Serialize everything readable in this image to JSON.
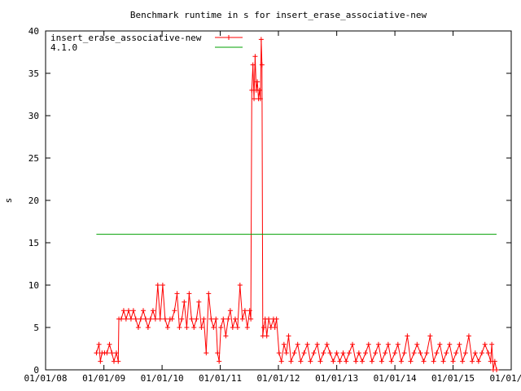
{
  "chart_data": {
    "type": "line",
    "title": "Benchmark runtime in s for insert_erase_associative-new",
    "xlabel": "",
    "ylabel": "s",
    "x_type": "date",
    "xlim": [
      "2008-01-01",
      "2016-01-01"
    ],
    "ylim": [
      0,
      40
    ],
    "x_ticks": [
      "01/01/08",
      "01/01/09",
      "01/01/10",
      "01/01/11",
      "01/01/12",
      "01/01/13",
      "01/01/14",
      "01/01/15",
      "01/01/16"
    ],
    "x_tick_dates": [
      "2008-01-01",
      "2009-01-01",
      "2010-01-01",
      "2011-01-01",
      "2012-01-01",
      "2013-01-01",
      "2014-01-01",
      "2015-01-01",
      "2016-01-01"
    ],
    "y_ticks": [
      0,
      5,
      10,
      15,
      20,
      25,
      30,
      35,
      40
    ],
    "grid": false,
    "legend_position": "top-left",
    "series": [
      {
        "name": "insert_erase_associative-new",
        "color": "#ff0000",
        "marker": "plus",
        "points": [
          [
            "2008-11-15",
            2
          ],
          [
            "2008-12-01",
            3
          ],
          [
            "2008-12-10",
            1
          ],
          [
            "2008-12-20",
            2
          ],
          [
            "2009-01-05",
            2
          ],
          [
            "2009-01-20",
            2
          ],
          [
            "2009-02-05",
            3
          ],
          [
            "2009-02-20",
            2
          ],
          [
            "2009-03-05",
            1
          ],
          [
            "2009-03-20",
            2
          ],
          [
            "2009-04-01",
            1
          ],
          [
            "2009-04-05",
            6
          ],
          [
            "2009-04-20",
            6
          ],
          [
            "2009-05-05",
            7
          ],
          [
            "2009-05-20",
            6
          ],
          [
            "2009-06-05",
            7
          ],
          [
            "2009-06-20",
            6
          ],
          [
            "2009-07-05",
            7
          ],
          [
            "2009-07-20",
            6
          ],
          [
            "2009-08-05",
            5
          ],
          [
            "2009-08-20",
            6
          ],
          [
            "2009-09-05",
            7
          ],
          [
            "2009-09-20",
            6
          ],
          [
            "2009-10-05",
            5
          ],
          [
            "2009-10-20",
            6
          ],
          [
            "2009-11-05",
            7
          ],
          [
            "2009-11-20",
            6
          ],
          [
            "2009-12-05",
            10
          ],
          [
            "2009-12-20",
            6
          ],
          [
            "2010-01-05",
            10
          ],
          [
            "2010-01-20",
            6
          ],
          [
            "2010-02-05",
            5
          ],
          [
            "2010-02-20",
            6
          ],
          [
            "2010-03-05",
            6
          ],
          [
            "2010-03-20",
            7
          ],
          [
            "2010-04-05",
            9
          ],
          [
            "2010-04-20",
            5
          ],
          [
            "2010-05-05",
            6
          ],
          [
            "2010-05-20",
            8
          ],
          [
            "2010-06-05",
            5
          ],
          [
            "2010-06-20",
            9
          ],
          [
            "2010-07-05",
            6
          ],
          [
            "2010-07-20",
            5
          ],
          [
            "2010-08-05",
            6
          ],
          [
            "2010-08-20",
            8
          ],
          [
            "2010-09-05",
            5
          ],
          [
            "2010-09-20",
            6
          ],
          [
            "2010-10-05",
            2
          ],
          [
            "2010-10-20",
            9
          ],
          [
            "2010-11-05",
            6
          ],
          [
            "2010-11-20",
            5
          ],
          [
            "2010-12-05",
            6
          ],
          [
            "2010-12-15",
            2
          ],
          [
            "2010-12-25",
            1
          ],
          [
            "2011-01-05",
            5
          ],
          [
            "2011-01-20",
            6
          ],
          [
            "2011-02-05",
            4
          ],
          [
            "2011-02-20",
            6
          ],
          [
            "2011-03-05",
            7
          ],
          [
            "2011-03-20",
            5
          ],
          [
            "2011-04-05",
            6
          ],
          [
            "2011-04-20",
            5
          ],
          [
            "2011-05-05",
            10
          ],
          [
            "2011-05-20",
            6
          ],
          [
            "2011-06-05",
            7
          ],
          [
            "2011-06-20",
            5
          ],
          [
            "2011-07-05",
            7
          ],
          [
            "2011-07-12",
            6
          ],
          [
            "2011-07-18",
            33
          ],
          [
            "2011-07-25",
            36
          ],
          [
            "2011-08-01",
            32
          ],
          [
            "2011-08-08",
            37
          ],
          [
            "2011-08-15",
            33
          ],
          [
            "2011-08-22",
            34
          ],
          [
            "2011-08-29",
            32
          ],
          [
            "2011-09-05",
            33
          ],
          [
            "2011-09-10",
            32
          ],
          [
            "2011-09-15",
            39
          ],
          [
            "2011-09-20",
            36
          ],
          [
            "2011-09-25",
            4
          ],
          [
            "2011-10-01",
            5
          ],
          [
            "2011-10-10",
            6
          ],
          [
            "2011-10-20",
            4
          ],
          [
            "2011-11-01",
            6
          ],
          [
            "2011-11-15",
            5
          ],
          [
            "2011-12-01",
            6
          ],
          [
            "2011-12-10",
            5
          ],
          [
            "2011-12-20",
            6
          ],
          [
            "2012-01-05",
            2
          ],
          [
            "2012-01-20",
            1
          ],
          [
            "2012-02-05",
            3
          ],
          [
            "2012-02-20",
            2
          ],
          [
            "2012-03-05",
            4
          ],
          [
            "2012-03-20",
            1
          ],
          [
            "2012-04-10",
            2
          ],
          [
            "2012-05-01",
            3
          ],
          [
            "2012-05-20",
            1
          ],
          [
            "2012-06-10",
            2
          ],
          [
            "2012-07-01",
            3
          ],
          [
            "2012-07-20",
            1
          ],
          [
            "2012-08-10",
            2
          ],
          [
            "2012-09-01",
            3
          ],
          [
            "2012-09-20",
            1
          ],
          [
            "2012-10-10",
            2
          ],
          [
            "2012-11-01",
            3
          ],
          [
            "2012-11-20",
            2
          ],
          [
            "2012-12-10",
            1
          ],
          [
            "2013-01-01",
            2
          ],
          [
            "2013-01-20",
            1
          ],
          [
            "2013-02-10",
            2
          ],
          [
            "2013-03-01",
            1
          ],
          [
            "2013-03-20",
            2
          ],
          [
            "2013-04-10",
            3
          ],
          [
            "2013-05-01",
            1
          ],
          [
            "2013-05-20",
            2
          ],
          [
            "2013-06-10",
            1
          ],
          [
            "2013-07-01",
            2
          ],
          [
            "2013-07-20",
            3
          ],
          [
            "2013-08-10",
            1
          ],
          [
            "2013-09-01",
            2
          ],
          [
            "2013-09-20",
            3
          ],
          [
            "2013-10-10",
            1
          ],
          [
            "2013-11-01",
            2
          ],
          [
            "2013-11-20",
            3
          ],
          [
            "2013-12-10",
            1
          ],
          [
            "2014-01-01",
            2
          ],
          [
            "2014-01-20",
            3
          ],
          [
            "2014-02-10",
            1
          ],
          [
            "2014-03-01",
            2
          ],
          [
            "2014-03-20",
            4
          ],
          [
            "2014-04-10",
            1
          ],
          [
            "2014-05-01",
            2
          ],
          [
            "2014-05-20",
            3
          ],
          [
            "2014-06-10",
            2
          ],
          [
            "2014-07-01",
            1
          ],
          [
            "2014-07-20",
            2
          ],
          [
            "2014-08-10",
            4
          ],
          [
            "2014-09-01",
            1
          ],
          [
            "2014-09-20",
            2
          ],
          [
            "2014-10-10",
            3
          ],
          [
            "2014-11-01",
            1
          ],
          [
            "2014-11-20",
            2
          ],
          [
            "2014-12-10",
            3
          ],
          [
            "2015-01-01",
            1
          ],
          [
            "2015-01-20",
            2
          ],
          [
            "2015-02-10",
            3
          ],
          [
            "2015-03-01",
            1
          ],
          [
            "2015-03-20",
            2
          ],
          [
            "2015-04-10",
            4
          ],
          [
            "2015-05-01",
            1
          ],
          [
            "2015-05-20",
            2
          ],
          [
            "2015-06-10",
            1
          ],
          [
            "2015-07-01",
            2
          ],
          [
            "2015-07-20",
            3
          ],
          [
            "2015-08-10",
            2
          ],
          [
            "2015-08-25",
            1
          ],
          [
            "2015-09-01",
            3
          ],
          [
            "2015-09-10",
            0
          ],
          [
            "2015-09-20",
            1
          ],
          [
            "2015-10-01",
            0
          ]
        ]
      },
      {
        "name": "4.1.0",
        "color": "#00a000",
        "marker": "none",
        "points": [
          [
            "2008-11-15",
            16
          ],
          [
            "2015-10-01",
            16
          ]
        ]
      }
    ]
  }
}
